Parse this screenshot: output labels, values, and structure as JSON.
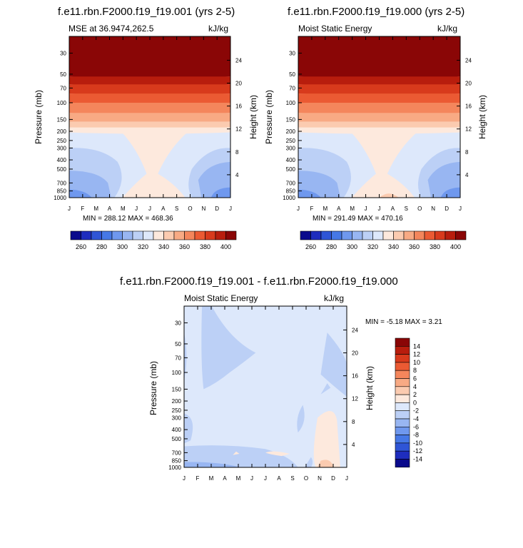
{
  "charts": [
    {
      "title": "f.e11.rbn.F2000.f19_f19.001 (yrs 2-5)",
      "left_label": "MSE at 36.9474,262.5",
      "right_label": "kJ/kg",
      "y_label": "Pressure (mb)",
      "y2_label": "Height (km)",
      "minmax": "MIN = 288.12 MAX = 468.36",
      "colorbar_labels": [
        "260",
        "280",
        "300",
        "320",
        "340",
        "360",
        "380",
        "400"
      ]
    },
    {
      "title": "f.e11.rbn.F2000.f19_f19.000 (yrs 2-5)",
      "left_label": "Moist Static Energy",
      "right_label": "kJ/kg",
      "y_label": "Pressure (mb)",
      "y2_label": "Height (km)",
      "minmax": "MIN = 291.49 MAX = 470.16",
      "colorbar_labels": [
        "260",
        "280",
        "300",
        "320",
        "340",
        "360",
        "380",
        "400"
      ]
    },
    {
      "title": "f.e11.rbn.F2000.f19_f19.001 - f.e11.rbn.F2000.f19_f19.000",
      "left_label": "Moist Static Energy",
      "right_label": "kJ/kg",
      "y_label": "Pressure (mb)",
      "y2_label": "Height (km)",
      "minmax": "MIN =  -5.18 MAX =   3.21",
      "colorbar_labels": [
        "14",
        "12",
        "10",
        "8",
        "6",
        "4",
        "2",
        "0",
        "-2",
        "-4",
        "-6",
        "-8",
        "-10",
        "-12",
        "-14"
      ]
    }
  ],
  "chart_data": [
    {
      "type": "heatmap",
      "title": "f.e11.rbn.F2000.f19_f19.001 (yrs 2-5)",
      "x_ticks": [
        "J",
        "F",
        "M",
        "A",
        "M",
        "J",
        "J",
        "A",
        "S",
        "O",
        "N",
        "D",
        "J"
      ],
      "y_ticks": [
        "30",
        "50",
        "70",
        "100",
        "150",
        "200",
        "250",
        "300",
        "400",
        "500",
        "700",
        "850",
        "1000"
      ],
      "y_scale": "log",
      "y_range": [
        1000,
        20
      ],
      "y2_ticks": [
        "24",
        "20",
        "16",
        "12",
        "8",
        "4"
      ],
      "colorbar_levels": [
        260,
        270,
        280,
        290,
        300,
        310,
        320,
        330,
        340,
        350,
        360,
        370,
        380,
        390,
        400,
        410
      ],
      "min": 288.12,
      "max": 468.36
    },
    {
      "type": "heatmap",
      "title": "f.e11.rbn.F2000.f19_f19.000 (yrs 2-5)",
      "x_ticks": [
        "J",
        "F",
        "M",
        "A",
        "M",
        "J",
        "J",
        "A",
        "S",
        "O",
        "N",
        "D",
        "J"
      ],
      "y_ticks": [
        "30",
        "50",
        "70",
        "100",
        "150",
        "200",
        "250",
        "300",
        "400",
        "500",
        "700",
        "850",
        "1000"
      ],
      "y_scale": "log",
      "y_range": [
        1000,
        20
      ],
      "y2_ticks": [
        "24",
        "20",
        "16",
        "12",
        "8",
        "4"
      ],
      "colorbar_levels": [
        260,
        270,
        280,
        290,
        300,
        310,
        320,
        330,
        340,
        350,
        360,
        370,
        380,
        390,
        400,
        410
      ],
      "min": 291.49,
      "max": 470.16
    },
    {
      "type": "heatmap",
      "title": "f.e11.rbn.F2000.f19_f19.001 - f.e11.rbn.F2000.f19_f19.000",
      "x_ticks": [
        "J",
        "F",
        "M",
        "A",
        "M",
        "J",
        "J",
        "A",
        "S",
        "O",
        "N",
        "D",
        "J"
      ],
      "y_ticks": [
        "30",
        "50",
        "70",
        "100",
        "150",
        "200",
        "250",
        "300",
        "400",
        "500",
        "700",
        "850",
        "1000"
      ],
      "y_scale": "log",
      "y_range": [
        1000,
        20
      ],
      "y2_ticks": [
        "24",
        "20",
        "16",
        "12",
        "8",
        "4"
      ],
      "colorbar_levels": [
        14,
        12,
        10,
        8,
        6,
        4,
        2,
        0,
        -2,
        -4,
        -6,
        -8,
        -10,
        -12,
        -14
      ],
      "min": -5.18,
      "max": 3.21
    }
  ],
  "colors": {
    "mse_scale": [
      "#0a0a8c",
      "#1e2dbe",
      "#2f55d6",
      "#4678e6",
      "#6f98ee",
      "#98b6f2",
      "#bcd0f6",
      "#dde8fb",
      "#fde9dd",
      "#fbcbb0",
      "#f8aa84",
      "#f4865c",
      "#eb5a33",
      "#d83a1c",
      "#b81d0d",
      "#8a0606"
    ],
    "diff_scale": [
      "#8a0606",
      "#b81d0d",
      "#d83a1c",
      "#eb5a33",
      "#f4865c",
      "#f8aa84",
      "#fbcbb0",
      "#fde9dd",
      "#dde8fb",
      "#bcd0f6",
      "#98b6f2",
      "#6f98ee",
      "#4678e6",
      "#2f55d6",
      "#1e2dbe",
      "#0a0a8c"
    ]
  }
}
